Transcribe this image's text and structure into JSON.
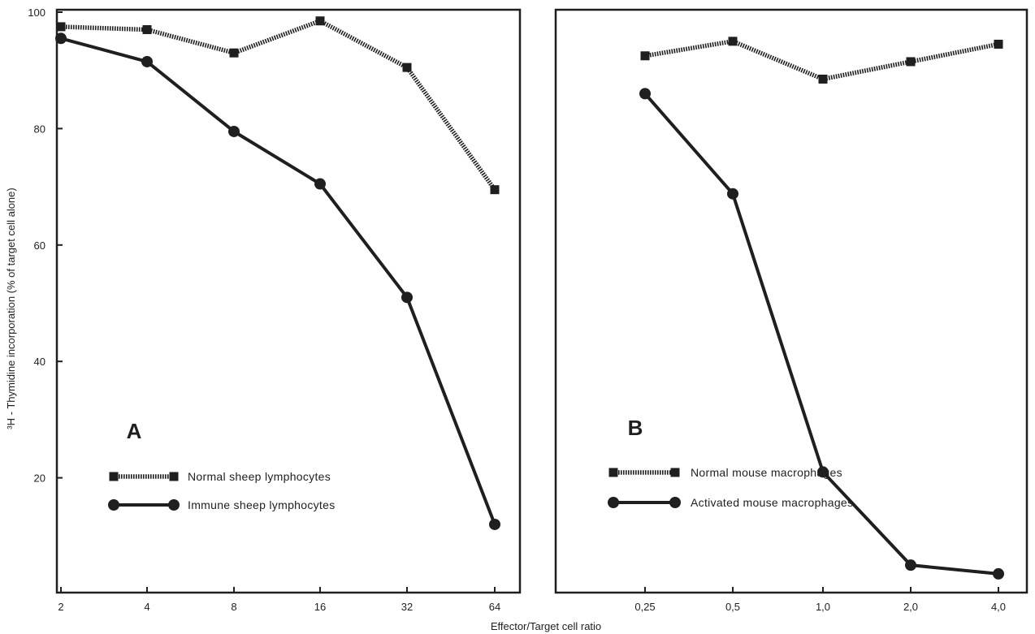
{
  "chart_data": [
    {
      "type": "line",
      "panel": "A",
      "panel_label": "A",
      "x": [
        "2",
        "4",
        "8",
        "16",
        "32",
        "64"
      ],
      "ylim": [
        0,
        100
      ],
      "yticks": [
        "20",
        "40",
        "60",
        "80",
        "100"
      ],
      "ytick_values": [
        20,
        40,
        60,
        80,
        100
      ],
      "ylabel": "³H - Thymidine incorporation (% of target cell alone)",
      "legend_position": "lower-left",
      "series": [
        {
          "name": "Normal sheep lymphocytes",
          "marker": "square",
          "line": "dotted",
          "values": [
            97.5,
            97,
            93,
            98.5,
            90.5,
            69.5
          ]
        },
        {
          "name": "Immune sheep lymphocytes",
          "marker": "circle",
          "line": "solid",
          "values": [
            95.5,
            91.5,
            79.5,
            70.5,
            51,
            12
          ]
        }
      ]
    },
    {
      "type": "line",
      "panel": "B",
      "panel_label": "B",
      "x": [
        "0,25",
        "0,5",
        "1,0",
        "2,0",
        "4,0"
      ],
      "ylim": [
        0,
        100
      ],
      "legend_position": "lower-left",
      "series": [
        {
          "name": "Normal mouse macrophages",
          "marker": "square",
          "line": "dotted",
          "values": [
            92.5,
            95,
            88.5,
            91.5,
            94.5
          ]
        },
        {
          "name": "Activated mouse macrophages",
          "marker": "circle",
          "line": "solid",
          "values": [
            86,
            68.8,
            21,
            5,
            3.5
          ]
        }
      ]
    }
  ],
  "xlabel": "Effector/Target cell ratio",
  "colors": {
    "ink": "#1f1f1f",
    "background": "#ffffff"
  }
}
